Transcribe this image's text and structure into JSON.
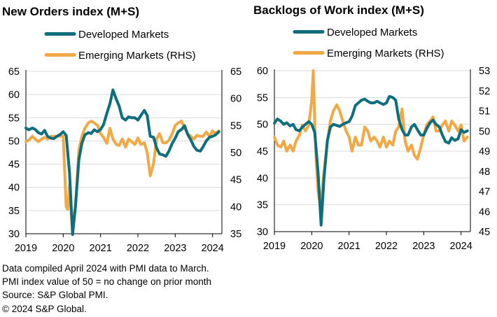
{
  "colors": {
    "developed": "#0e6e7e",
    "emerging": "#f2a945",
    "grid": "#d9d9d9",
    "axis": "#000000"
  },
  "footnotes": [
    "Data compiled April 2024 with PMI data to March.",
    "PMI index value of 50 = no change on prior month",
    "Source: S&P Global PMI.",
    "© 2024 S&P Global."
  ],
  "chart_data": [
    {
      "type": "line",
      "title": "New Orders index (M+S)",
      "legend_placement": "top",
      "grid": "horizontal",
      "x_range": [
        2019.0,
        2024.25
      ],
      "x_ticks": [
        "2019",
        "2020",
        "2021",
        "2022",
        "2023",
        "2024"
      ],
      "y_left": {
        "min": 30,
        "max": 65,
        "ticks": [
          "30",
          "35",
          "40",
          "45",
          "50",
          "55",
          "60",
          "65"
        ]
      },
      "y_right": {
        "min": 35,
        "max": 65,
        "ticks": [
          "35",
          "40",
          "45",
          "50",
          "55",
          "60",
          "65"
        ]
      },
      "series": [
        {
          "name": "Developed Markets",
          "axis": "left",
          "color": "#0e6e7e",
          "x": [
            2019.0,
            2019.08,
            2019.17,
            2019.25,
            2019.33,
            2019.42,
            2019.5,
            2019.58,
            2019.67,
            2019.75,
            2019.83,
            2019.92,
            2020.0,
            2020.08,
            2020.17,
            2020.25,
            2020.33,
            2020.42,
            2020.5,
            2020.58,
            2020.67,
            2020.75,
            2020.83,
            2020.92,
            2021.0,
            2021.08,
            2021.17,
            2021.25,
            2021.33,
            2021.42,
            2021.5,
            2021.58,
            2021.67,
            2021.75,
            2021.83,
            2021.92,
            2022.0,
            2022.08,
            2022.17,
            2022.25,
            2022.33,
            2022.42,
            2022.5,
            2022.58,
            2022.67,
            2022.75,
            2022.83,
            2022.92,
            2023.0,
            2023.08,
            2023.17,
            2023.25,
            2023.33,
            2023.42,
            2023.5,
            2023.58,
            2023.67,
            2023.75,
            2023.83,
            2023.92,
            2024.0,
            2024.08,
            2024.17
          ],
          "y": [
            52.8,
            52.4,
            52.8,
            52.5,
            51.8,
            51.5,
            52.3,
            51.0,
            50.6,
            50.5,
            51.0,
            51.4,
            52.0,
            51.2,
            43.0,
            29.8,
            36.0,
            46.0,
            49.5,
            51.3,
            51.8,
            51.6,
            52.4,
            52.0,
            52.5,
            53.5,
            56.0,
            58.0,
            61.0,
            59.0,
            57.5,
            55.0,
            54.5,
            55.2,
            55.0,
            55.0,
            54.5,
            55.5,
            56.6,
            55.5,
            51.0,
            50.8,
            48.5,
            47.2,
            47.0,
            46.7,
            47.8,
            49.5,
            50.6,
            52.0,
            52.5,
            53.3,
            51.5,
            50.2,
            48.8,
            48.0,
            47.8,
            48.8,
            50.0,
            50.8,
            51.0,
            51.3,
            52.0
          ]
        },
        {
          "name": "Emerging Markets (RHS)",
          "axis": "right",
          "color": "#f2a945",
          "x": [
            2019.0,
            2019.08,
            2019.17,
            2019.25,
            2019.33,
            2019.42,
            2019.5,
            2019.58,
            2019.67,
            2019.75,
            2019.83,
            2019.92,
            2020.0,
            2020.08,
            2020.12,
            2020.17,
            2020.22,
            2020.25,
            2020.33,
            2020.42,
            2020.5,
            2020.58,
            2020.67,
            2020.75,
            2020.83,
            2020.92,
            2021.0,
            2021.08,
            2021.17,
            2021.25,
            2021.33,
            2021.42,
            2021.5,
            2021.58,
            2021.67,
            2021.75,
            2021.83,
            2021.92,
            2022.0,
            2022.08,
            2022.17,
            2022.25,
            2022.33,
            2022.42,
            2022.5,
            2022.58,
            2022.67,
            2022.75,
            2022.83,
            2022.92,
            2023.0,
            2023.08,
            2023.17,
            2023.25,
            2023.33,
            2023.42,
            2023.5,
            2023.58,
            2023.67,
            2023.75,
            2023.83,
            2023.92,
            2024.0,
            2024.08,
            2024.17
          ],
          "y": [
            52.0,
            52.3,
            53.0,
            52.5,
            52.0,
            52.5,
            52.8,
            52.5,
            53.0,
            53.0,
            53.0,
            53.0,
            53.0,
            40.0,
            39.5,
            44.0,
            38.0,
            35.3,
            40.5,
            50.5,
            53.0,
            54.5,
            55.5,
            55.8,
            55.5,
            55.0,
            53.5,
            52.8,
            51.7,
            54.5,
            52.5,
            51.5,
            51.3,
            52.5,
            51.0,
            52.5,
            52.0,
            51.5,
            52.7,
            51.5,
            51.8,
            50.0,
            45.7,
            48.0,
            52.5,
            53.5,
            51.8,
            51.8,
            52.3,
            53.5,
            55.0,
            55.5,
            55.8,
            54.5,
            53.5,
            53.0,
            52.5,
            53.2,
            53.0,
            53.0,
            53.8,
            53.0,
            54.0,
            53.5,
            54.0
          ]
        }
      ]
    },
    {
      "type": "line",
      "title": "Backlogs of Work index (M+S)",
      "legend_placement": "top",
      "grid": "horizontal",
      "x_range": [
        2019.0,
        2024.25
      ],
      "x_ticks": [
        "2019",
        "2020",
        "2021",
        "2022",
        "2023",
        "2024"
      ],
      "y_left": {
        "min": 30,
        "max": 60,
        "ticks": [
          "30",
          "35",
          "40",
          "45",
          "50",
          "55",
          "60"
        ]
      },
      "y_right": {
        "min": 45,
        "max": 53,
        "ticks": [
          "45",
          "46",
          "47",
          "48",
          "49",
          "50",
          "51",
          "52",
          "53"
        ]
      },
      "series": [
        {
          "name": "Developed Markets",
          "axis": "left",
          "color": "#0e6e7e",
          "x": [
            2019.0,
            2019.08,
            2019.17,
            2019.25,
            2019.33,
            2019.42,
            2019.5,
            2019.58,
            2019.67,
            2019.75,
            2019.83,
            2019.92,
            2020.0,
            2020.08,
            2020.17,
            2020.25,
            2020.33,
            2020.42,
            2020.5,
            2020.58,
            2020.67,
            2020.75,
            2020.83,
            2020.92,
            2021.0,
            2021.08,
            2021.17,
            2021.25,
            2021.33,
            2021.42,
            2021.5,
            2021.58,
            2021.67,
            2021.75,
            2021.83,
            2021.92,
            2022.0,
            2022.08,
            2022.17,
            2022.25,
            2022.33,
            2022.42,
            2022.5,
            2022.58,
            2022.67,
            2022.75,
            2022.83,
            2022.92,
            2023.0,
            2023.08,
            2023.17,
            2023.25,
            2023.33,
            2023.42,
            2023.5,
            2023.58,
            2023.67,
            2023.75,
            2023.83,
            2023.92,
            2024.0,
            2024.08,
            2024.17
          ],
          "y": [
            50.2,
            51.0,
            50.6,
            50.0,
            50.3,
            49.7,
            50.0,
            49.0,
            48.8,
            49.5,
            50.0,
            50.5,
            50.0,
            48.5,
            41.0,
            31.2,
            40.0,
            47.0,
            49.5,
            50.0,
            49.8,
            49.6,
            50.0,
            50.3,
            50.5,
            51.5,
            53.5,
            54.0,
            54.5,
            54.7,
            54.3,
            54.0,
            54.0,
            54.3,
            54.0,
            53.7,
            54.0,
            55.2,
            55.0,
            54.5,
            51.0,
            49.0,
            48.0,
            48.0,
            49.5,
            50.0,
            49.0,
            48.0,
            48.0,
            49.2,
            50.3,
            50.8,
            50.0,
            49.5,
            48.0,
            46.8,
            46.5,
            47.5,
            47.0,
            47.3,
            49.0,
            48.5,
            48.8
          ]
        },
        {
          "name": "Emerging Markets (RHS)",
          "axis": "right",
          "color": "#f2a945",
          "x": [
            2019.0,
            2019.08,
            2019.17,
            2019.25,
            2019.33,
            2019.42,
            2019.5,
            2019.58,
            2019.67,
            2019.75,
            2019.83,
            2019.92,
            2020.0,
            2020.04,
            2020.08,
            2020.12,
            2020.17,
            2020.22,
            2020.25,
            2020.33,
            2020.42,
            2020.5,
            2020.58,
            2020.67,
            2020.75,
            2020.83,
            2020.92,
            2021.0,
            2021.08,
            2021.17,
            2021.25,
            2021.33,
            2021.42,
            2021.5,
            2021.58,
            2021.67,
            2021.75,
            2021.83,
            2021.92,
            2022.0,
            2022.08,
            2022.17,
            2022.25,
            2022.33,
            2022.42,
            2022.5,
            2022.58,
            2022.67,
            2022.75,
            2022.83,
            2022.92,
            2023.0,
            2023.08,
            2023.17,
            2023.25,
            2023.33,
            2023.42,
            2023.5,
            2023.58,
            2023.67,
            2023.75,
            2023.83,
            2023.92,
            2024.0,
            2024.08,
            2024.17
          ],
          "y": [
            49.7,
            49.3,
            49.2,
            49.5,
            49.0,
            49.3,
            49.0,
            49.5,
            49.8,
            50.3,
            50.0,
            50.3,
            51.5,
            53.0,
            50.5,
            48.5,
            47.0,
            46.4,
            46.5,
            48.0,
            49.5,
            50.5,
            51.0,
            51.3,
            51.0,
            50.5,
            50.0,
            49.7,
            49.0,
            49.7,
            49.3,
            49.3,
            50.2,
            50.0,
            49.5,
            49.7,
            49.5,
            49.2,
            49.7,
            49.2,
            49.5,
            49.3,
            50.0,
            50.2,
            51.1,
            49.5,
            49.0,
            49.3,
            48.8,
            48.6,
            49.2,
            49.8,
            50.3,
            50.5,
            50.7,
            50.0,
            50.0,
            50.3,
            50.5,
            50.0,
            50.5,
            50.3,
            50.0,
            50.3,
            49.5,
            49.7
          ]
        }
      ]
    }
  ]
}
